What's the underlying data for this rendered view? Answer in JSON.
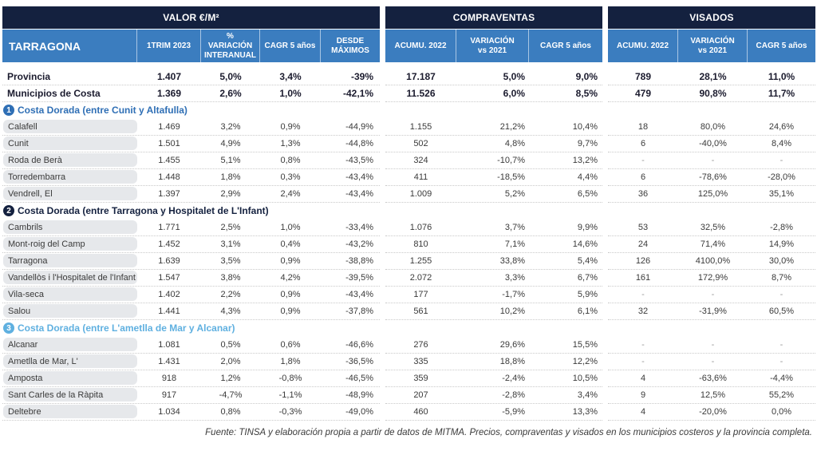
{
  "colors": {
    "header_dark": "#14213f",
    "header_blue": "#3b7dbf",
    "group1": "#2f6fb5",
    "group2": "#14213f",
    "group3": "#5fb0e0"
  },
  "header": {
    "valor_title": "VALOR €/M²",
    "compraventas_title": "COMPRAVENTAS",
    "visados_title": "VISADOS",
    "region": "TARRAGONA",
    "columns": {
      "trim": "1TRIM 2023",
      "var_interanual": "% VARIACIÓN INTERANUAL",
      "cagr_valor": "CAGR 5 años",
      "desde_maximos": "DESDE MÁXIMOS",
      "cv_acumu": "ACUMU. 2022",
      "cv_var": "VARIACIÓN vs 2021",
      "cv_cagr": "CAGR 5 años",
      "vis_acumu": "ACUMU. 2022",
      "vis_var": "VARIACIÓN vs 2021",
      "vis_cagr": "CAGR 5 años"
    }
  },
  "summary": [
    {
      "name": "Provincia",
      "v": [
        "1.407",
        "5,0%",
        "3,4%",
        "-39%",
        "17.187",
        "5,0%",
        "9,0%",
        "789",
        "28,1%",
        "11,0%"
      ]
    },
    {
      "name": "Municipios de Costa",
      "v": [
        "1.369",
        "2,6%",
        "1,0%",
        "-42,1%",
        "11.526",
        "6,0%",
        "8,5%",
        "479",
        "90,8%",
        "11,7%"
      ]
    }
  ],
  "groups": [
    {
      "number": "1",
      "title": "Costa Dorada (entre Cunit y Altafulla)",
      "rows": [
        {
          "name": "Calafell",
          "v": [
            "1.469",
            "3,2%",
            "0,9%",
            "-44,9%",
            "1.155",
            "21,2%",
            "10,4%",
            "18",
            "80,0%",
            "24,6%"
          ]
        },
        {
          "name": "Cunit",
          "v": [
            "1.501",
            "4,9%",
            "1,3%",
            "-44,8%",
            "502",
            "4,8%",
            "9,7%",
            "6",
            "-40,0%",
            "8,4%"
          ]
        },
        {
          "name": "Roda de Berà",
          "v": [
            "1.455",
            "5,1%",
            "0,8%",
            "-43,5%",
            "324",
            "-10,7%",
            "13,2%",
            "-",
            "-",
            "-"
          ]
        },
        {
          "name": "Torredembarra",
          "v": [
            "1.448",
            "1,8%",
            "0,3%",
            "-43,4%",
            "411",
            "-18,5%",
            "4,4%",
            "6",
            "-78,6%",
            "-28,0%"
          ]
        },
        {
          "name": "Vendrell, El",
          "v": [
            "1.397",
            "2,9%",
            "2,4%",
            "-43,4%",
            "1.009",
            "5,2%",
            "6,5%",
            "36",
            "125,0%",
            "35,1%"
          ]
        }
      ]
    },
    {
      "number": "2",
      "title": "Costa Dorada (entre Tarragona y Hospitalet de L'Infant)",
      "rows": [
        {
          "name": "Cambrils",
          "v": [
            "1.771",
            "2,5%",
            "1,0%",
            "-33,4%",
            "1.076",
            "3,7%",
            "9,9%",
            "53",
            "32,5%",
            "-2,8%"
          ]
        },
        {
          "name": "Mont-roig del Camp",
          "v": [
            "1.452",
            "3,1%",
            "0,4%",
            "-43,2%",
            "810",
            "7,1%",
            "14,6%",
            "24",
            "71,4%",
            "14,9%"
          ]
        },
        {
          "name": "Tarragona",
          "v": [
            "1.639",
            "3,5%",
            "0,9%",
            "-38,8%",
            "1.255",
            "33,8%",
            "5,4%",
            "126",
            "4100,0%",
            "30,0%"
          ]
        },
        {
          "name": "Vandellòs i l'Hospitalet de l'Infant",
          "v": [
            "1.547",
            "3,8%",
            "4,2%",
            "-39,5%",
            "2.072",
            "3,3%",
            "6,7%",
            "161",
            "172,9%",
            "8,7%"
          ]
        },
        {
          "name": "Vila-seca",
          "v": [
            "1.402",
            "2,2%",
            "0,9%",
            "-43,4%",
            "177",
            "-1,7%",
            "5,9%",
            "-",
            "-",
            "-"
          ]
        },
        {
          "name": "Salou",
          "v": [
            "1.441",
            "4,3%",
            "0,9%",
            "-37,8%",
            "561",
            "10,2%",
            "6,1%",
            "32",
            "-31,9%",
            "60,5%"
          ]
        }
      ]
    },
    {
      "number": "3",
      "title": "Costa Dorada (entre L'ametlla de Mar y Alcanar)",
      "rows": [
        {
          "name": "Alcanar",
          "v": [
            "1.081",
            "0,5%",
            "0,6%",
            "-46,6%",
            "276",
            "29,6%",
            "15,5%",
            "-",
            "-",
            "-"
          ]
        },
        {
          "name": "Ametlla de Mar, L'",
          "v": [
            "1.431",
            "2,0%",
            "1,8%",
            "-36,5%",
            "335",
            "18,8%",
            "12,2%",
            "-",
            "-",
            "-"
          ]
        },
        {
          "name": "Amposta",
          "v": [
            "918",
            "1,2%",
            "-0,8%",
            "-46,5%",
            "359",
            "-2,4%",
            "10,5%",
            "4",
            "-63,6%",
            "-4,4%"
          ]
        },
        {
          "name": "Sant Carles de la Ràpita",
          "v": [
            "917",
            "-4,7%",
            "-1,1%",
            "-48,9%",
            "207",
            "-2,8%",
            "3,4%",
            "9",
            "12,5%",
            "55,2%"
          ]
        },
        {
          "name": "Deltebre",
          "v": [
            "1.034",
            "0,8%",
            "-0,3%",
            "-49,0%",
            "460",
            "-5,9%",
            "13,3%",
            "4",
            "-20,0%",
            "0,0%"
          ]
        }
      ]
    }
  ],
  "footer": "Fuente: TINSA y elaboración propia a partir de datos de MITMA. Precios, compraventas y visados en los municipios costeros y la provincia completa."
}
